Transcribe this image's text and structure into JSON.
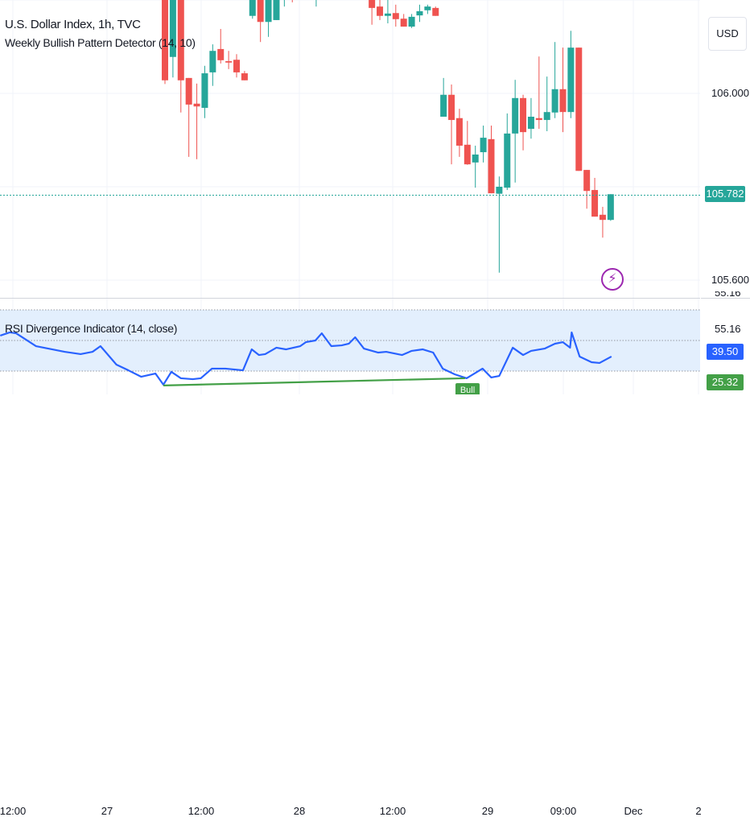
{
  "header": {
    "title": "U.S. Dollar Index, 1h, TVC",
    "indicator": "Weekly Bullish Pattern Detector (14, 10)",
    "currency_button": "USD"
  },
  "price_axis": {
    "labels": [
      "106.000",
      "105.600"
    ],
    "current_price": "105.782",
    "current_price_color": "#26a69a"
  },
  "rsi_panel": {
    "title": "RSI Divergence Indicator (14, close)",
    "axis_labels": {
      "top_cut": "55.16",
      "upper": "55.16",
      "current": "39.50",
      "divergence": "25.32"
    },
    "current_color": "#2962ff",
    "divergence_color": "#43a047",
    "signal_label": "Bull"
  },
  "time_axis": [
    "12:00",
    "27",
    "12:00",
    "28",
    "12:00",
    "29",
    "09:00",
    "Dec",
    "2"
  ],
  "colors": {
    "up": "#26a69a",
    "down": "#ef5350",
    "rsi": "#2962ff",
    "band": "#e3effd",
    "alert": "#9c27b0"
  },
  "chart_data": {
    "type": "candlestick",
    "candles": [
      [
        106.25,
        106.3,
        106.02,
        106.028
      ],
      [
        106.078,
        106.3,
        106.034,
        106.24
      ],
      [
        106.27,
        106.3,
        105.959,
        106.028
      ],
      [
        106.033,
        106.033,
        105.864,
        105.976
      ],
      [
        105.978,
        106.021,
        105.859,
        105.972
      ],
      [
        105.969,
        106.059,
        105.947,
        106.043
      ],
      [
        106.045,
        106.105,
        106.016,
        106.091
      ],
      [
        106.095,
        106.138,
        106.064,
        106.071
      ],
      [
        106.069,
        106.091,
        106.052,
        106.066
      ],
      [
        106.072,
        106.084,
        106.034,
        106.045
      ],
      [
        106.043,
        106.048,
        106.028,
        106.028
      ],
      [
        106.166,
        106.35,
        106.16,
        106.3
      ],
      [
        106.3,
        106.32,
        106.11,
        106.153
      ],
      [
        106.153,
        106.33,
        106.121,
        106.3
      ],
      [
        106.157,
        106.32,
        106.157,
        106.3
      ],
      [
        106.25,
        106.3,
        106.186,
        106.28
      ],
      [
        106.28,
        106.32,
        106.195,
        106.26
      ],
      [
        106.3,
        106.35,
        106.22,
        106.32
      ],
      [
        106.3,
        106.34,
        106.25,
        106.26
      ],
      [
        106.26,
        106.3,
        106.186,
        106.29
      ],
      [
        106.3,
        106.35,
        106.25,
        106.33
      ],
      [
        106.33,
        106.36,
        106.26,
        106.3
      ],
      [
        106.3,
        106.34,
        106.25,
        106.27
      ],
      [
        106.27,
        106.33,
        106.23,
        106.31
      ],
      [
        106.31,
        106.36,
        106.26,
        106.28
      ],
      [
        106.28,
        106.32,
        106.24,
        106.3
      ],
      [
        106.3,
        106.32,
        106.147,
        106.183
      ],
      [
        106.186,
        106.2,
        106.157,
        106.166
      ],
      [
        106.166,
        106.2,
        106.15,
        106.171
      ],
      [
        106.172,
        106.19,
        106.143,
        106.159
      ],
      [
        106.16,
        106.17,
        106.143,
        106.143
      ],
      [
        106.143,
        106.17,
        106.14,
        106.164
      ],
      [
        106.167,
        106.19,
        106.153,
        106.176
      ],
      [
        106.178,
        106.19,
        106.17,
        106.186
      ],
      [
        106.183,
        106.186,
        106.166,
        106.166
      ],
      [
        105.95,
        106.033,
        105.95,
        105.997
      ],
      [
        105.997,
        106.019,
        105.848,
        105.943
      ],
      [
        105.947,
        105.967,
        105.864,
        105.888
      ],
      [
        105.89,
        105.941,
        105.847,
        105.848
      ],
      [
        105.852,
        105.888,
        105.798,
        105.869
      ],
      [
        105.874,
        105.931,
        105.852,
        105.905
      ],
      [
        105.902,
        105.931,
        105.786,
        105.786
      ],
      [
        105.785,
        105.822,
        105.616,
        105.8
      ],
      [
        105.798,
        105.957,
        105.793,
        105.914
      ],
      [
        105.914,
        106.029,
        105.809,
        105.99
      ],
      [
        105.99,
        105.997,
        105.878,
        105.917
      ],
      [
        105.924,
        105.99,
        105.903,
        105.95
      ],
      [
        105.947,
        106.079,
        105.924,
        105.943
      ],
      [
        105.943,
        106.036,
        105.919,
        105.96
      ],
      [
        105.959,
        106.11,
        105.947,
        106.009
      ],
      [
        106.009,
        106.098,
        105.917,
        105.96
      ],
      [
        105.96,
        106.134,
        105.947,
        106.098
      ],
      [
        106.098,
        106.098,
        105.834,
        105.834
      ],
      [
        105.836,
        105.836,
        105.753,
        105.791
      ],
      [
        105.793,
        105.819,
        105.736,
        105.736
      ],
      [
        105.74,
        105.757,
        105.691,
        105.729
      ],
      [
        105.729,
        105.784,
        105.727,
        105.784
      ]
    ],
    "candle_format": [
      "open",
      "high",
      "low",
      "close"
    ],
    "price_range": [
      105.6,
      106.0
    ],
    "rsi": {
      "bars": [
        -20.7,
        -19.5,
        -18.7,
        -16.2,
        -12.6,
        -10.6,
        -9.1,
        -8.1,
        -6.1,
        -4.6,
        -3,
        -1.2,
        -0.2,
        0.8,
        2,
        3.5,
        4.5,
        5.9,
        7.6,
        9.8,
        10.9,
        11.8,
        12.6,
        14,
        15.2,
        17,
        17.7,
        18.9,
        19.7,
        20.9,
        22.2,
        23.1,
        23.9,
        25,
        26.8,
        27.8,
        29.8,
        31,
        32.4,
        33.7,
        34.9,
        36.4,
        37.9,
        39.9,
        41,
        42,
        43.7,
        45,
        46,
        47.7,
        49,
        50,
        50.9,
        51.1,
        52.1,
        53.6,
        54.6,
        56.1
      ],
      "values": [
        53.2,
        55.3,
        54.7,
        46.3,
        42.6,
        41.1,
        42.6,
        46.3,
        34.2,
        30.5,
        26.3,
        28.4,
        21.1,
        29.5,
        25.3,
        24.7,
        25.3,
        31.6,
        31.6,
        30.5,
        44.2,
        40.5,
        41.1,
        45.3,
        44.2,
        46.3,
        48.9,
        50,
        54.7,
        46.3,
        46.8,
        47.9,
        52.1,
        44.7,
        42.1,
        42.6,
        40.5,
        43.2,
        44.2,
        42.1,
        31.6,
        27.9,
        25.3,
        31.6,
        25.8,
        26.8,
        45.3,
        40.5,
        43.2,
        44.7,
        47.9,
        48.9,
        45.3,
        55.3,
        39.5,
        35.8,
        35.3,
        39.5
      ],
      "bands": [
        70,
        50,
        30
      ],
      "divergence": {
        "from": [
          -0.2,
          20.6
        ],
        "to": [
          37.7,
          25.3
        ]
      }
    }
  }
}
